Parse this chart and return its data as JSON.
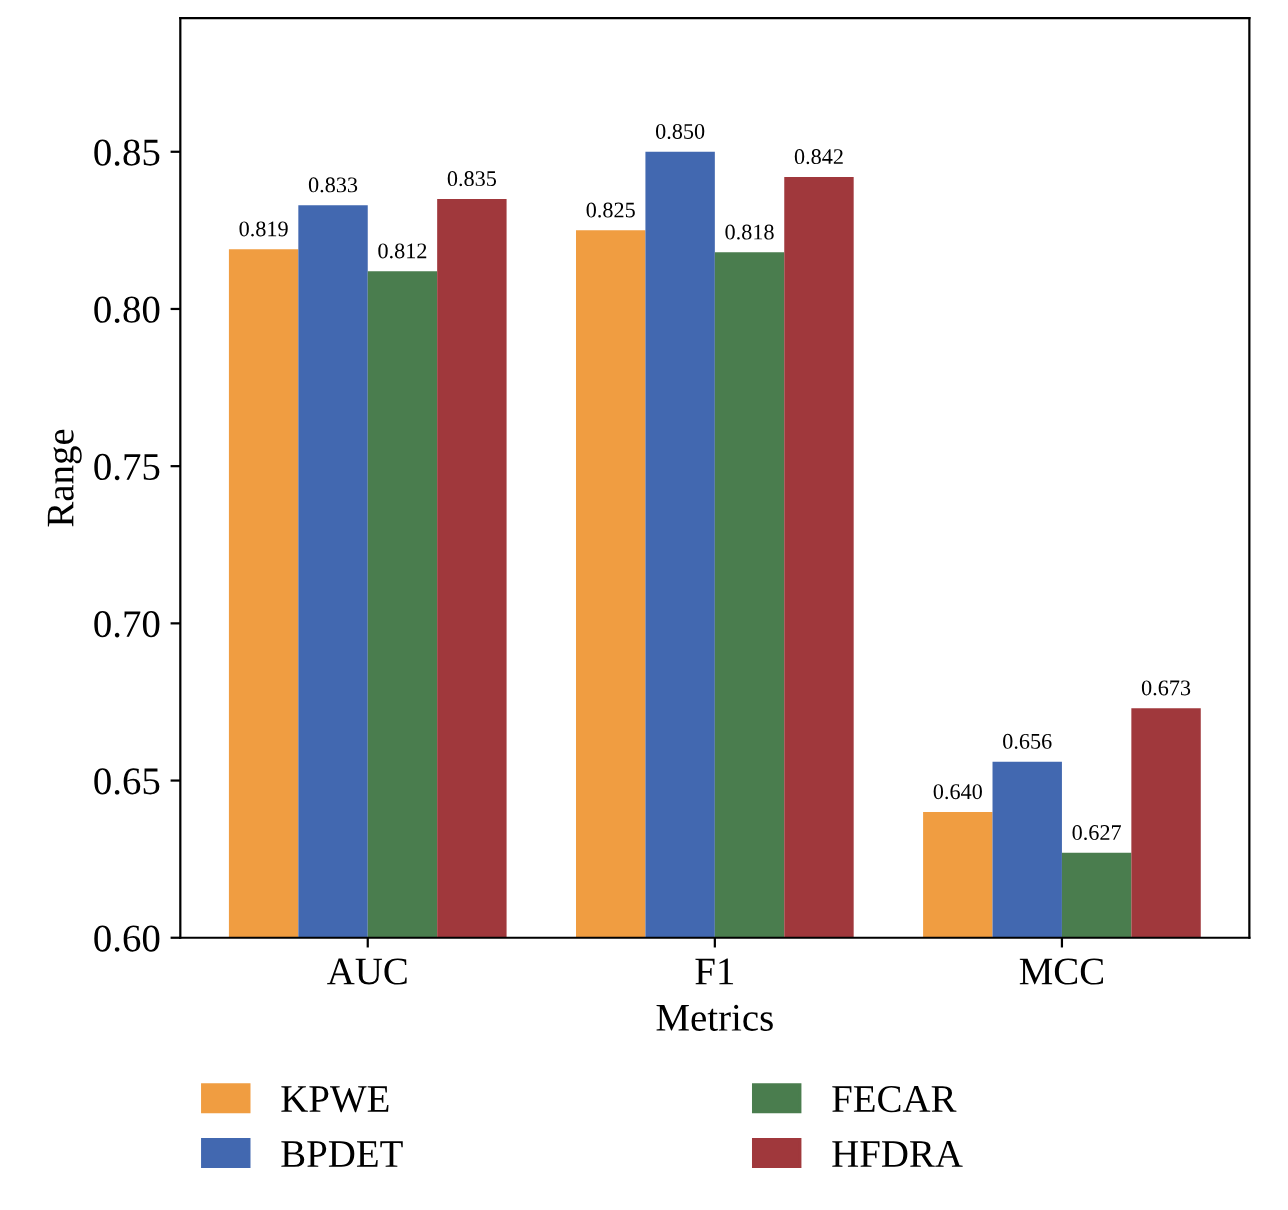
{
  "chart_data": {
    "type": "bar",
    "xlabel": "Metrics",
    "ylabel": "Range",
    "categories": [
      "AUC",
      "F1",
      "MCC"
    ],
    "series": [
      {
        "name": "KPWE",
        "color": "#f09d41",
        "values": [
          0.819,
          0.825,
          0.64
        ],
        "value_labels": [
          "0.819",
          "0.825",
          "0.640"
        ]
      },
      {
        "name": "BPDET",
        "color": "#4268b0",
        "values": [
          0.833,
          0.85,
          0.656
        ],
        "value_labels": [
          "0.833",
          "0.850",
          "0.656"
        ]
      },
      {
        "name": "FECAR",
        "color": "#4a7d4e",
        "values": [
          0.812,
          0.818,
          0.627
        ],
        "value_labels": [
          "0.812",
          "0.818",
          "0.627"
        ]
      },
      {
        "name": "HFDRA",
        "color": "#a0383c",
        "values": [
          0.835,
          0.842,
          0.673
        ],
        "value_labels": [
          "0.835",
          "0.842",
          "0.673"
        ]
      }
    ],
    "ylim": [
      0.6,
      0.8925
    ],
    "yticks": [
      {
        "value": 0.6,
        "label": "0.60"
      },
      {
        "value": 0.65,
        "label": "0.65"
      },
      {
        "value": 0.7,
        "label": "0.70"
      },
      {
        "value": 0.75,
        "label": "0.75"
      },
      {
        "value": 0.8,
        "label": "0.80"
      },
      {
        "value": 0.85,
        "label": "0.85"
      }
    ],
    "legend": "bottom",
    "grid": false
  }
}
